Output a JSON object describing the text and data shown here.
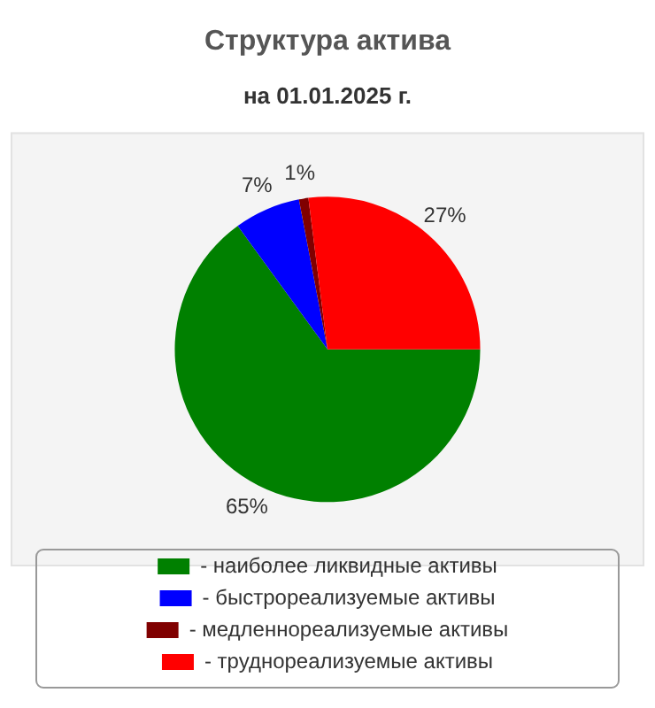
{
  "chart_data": {
    "type": "pie",
    "title": "Структура актива",
    "subtitle": "на 01.01.2025 г.",
    "categories": [
      "- наиболее ликвидные активы",
      "- быстрореализуемые активы",
      "- медленнореализуемые активы",
      "- труднореализуемые активы"
    ],
    "values": [
      65,
      7,
      1,
      27
    ],
    "value_labels": [
      "65%",
      "7%",
      "1%",
      "27%"
    ],
    "colors": [
      "#008000",
      "#0000ff",
      "#800000",
      "#ff0000"
    ],
    "legend": "bottom"
  }
}
